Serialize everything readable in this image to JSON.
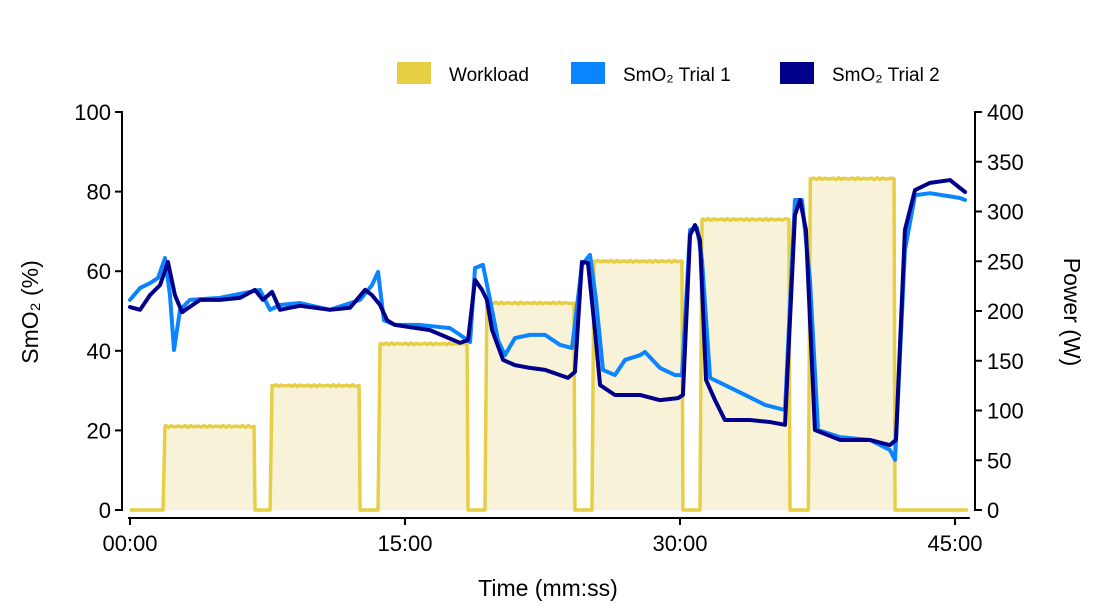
{
  "chart_data": {
    "type": "line",
    "xlabel": "Time (mm:ss)",
    "ylabel": "SmO₂ (%)",
    "y2label": "Power (W)",
    "xlim": [
      0,
      46
    ],
    "ylim": [
      0,
      100
    ],
    "y2lim": [
      0,
      400
    ],
    "x_ticks": [
      {
        "value": 0,
        "label": "00:00"
      },
      {
        "value": 15,
        "label": "15:00"
      },
      {
        "value": 30,
        "label": "30:00"
      },
      {
        "value": 45,
        "label": "45:00"
      }
    ],
    "y_ticks": [
      0,
      20,
      40,
      60,
      80,
      100
    ],
    "y2_ticks": [
      0,
      50,
      100,
      150,
      200,
      250,
      300,
      350,
      400
    ],
    "grid": false,
    "legend_position": "top-right",
    "legend": [
      {
        "label": "Workload",
        "color": "#e6cf45"
      },
      {
        "label": "SmO₂ Trial 1",
        "color": "#0a84ff"
      },
      {
        "label": "SmO₂ Trial 2",
        "color": "#00008b"
      }
    ],
    "workload": {
      "name": "Workload",
      "color": "#e6cf45",
      "fill": "#f8f2d8",
      "x_end": 45.7,
      "stages": [
        {
          "start": 1.8,
          "end": 6.82,
          "power": 84
        },
        {
          "start": 7.64,
          "end": 12.55,
          "power": 125
        },
        {
          "start": 13.53,
          "end": 18.44,
          "power": 167
        },
        {
          "start": 19.36,
          "end": 24.27,
          "power": 208
        },
        {
          "start": 25.2,
          "end": 30.16,
          "power": 250
        },
        {
          "start": 31.09,
          "end": 36.0,
          "power": 292
        },
        {
          "start": 37.0,
          "end": 41.73,
          "power": 333
        }
      ]
    },
    "series": [
      {
        "name": "SmO₂ Trial 1",
        "color": "#0a84ff",
        "x": [
          0,
          0.55,
          1.09,
          1.53,
          1.91,
          2.18,
          2.4,
          2.73,
          3.27,
          4.91,
          7.09,
          7.64,
          8.18,
          9.27,
          10.91,
          12.55,
          13.2,
          13.53,
          13.85,
          14.45,
          15.82,
          17.45,
          18.0,
          18.55,
          18.82,
          19.25,
          19.64,
          20.07,
          20.45,
          21.0,
          21.82,
          22.64,
          23.45,
          24.11,
          24.65,
          25.09,
          25.42,
          25.8,
          26.45,
          27.0,
          27.82,
          28.09,
          28.91,
          29.73,
          30.11,
          30.55,
          30.93,
          31.2,
          31.64,
          32.45,
          33.55,
          34.64,
          35.73,
          36.27,
          36.65,
          37.09,
          37.53,
          38.73,
          40.36,
          41.45,
          41.73,
          42.27,
          42.82,
          43.64,
          45.27,
          45.55
        ],
        "y": [
          52.8,
          55.8,
          57.0,
          58.3,
          63.3,
          54.0,
          40.2,
          50.3,
          52.8,
          53.3,
          55.3,
          50.3,
          51.5,
          52.0,
          50.3,
          52.8,
          56.5,
          59.8,
          47.7,
          46.5,
          46.5,
          45.7,
          44.0,
          42.2,
          60.8,
          61.6,
          52.8,
          42.7,
          38.9,
          43.2,
          44.0,
          44.0,
          41.5,
          40.7,
          61.6,
          64.1,
          52.8,
          35.2,
          33.9,
          37.7,
          38.9,
          39.7,
          35.7,
          33.9,
          33.9,
          70.4,
          70.9,
          62.8,
          33.2,
          31.4,
          28.9,
          26.4,
          25.1,
          77.9,
          77.9,
          57.8,
          20.1,
          18.3,
          17.6,
          15.1,
          12.6,
          65.3,
          79.1,
          79.6,
          78.4,
          77.9
        ]
      },
      {
        "name": "SmO₂ Trial 2",
        "color": "#00008b",
        "x": [
          0,
          0.55,
          1.09,
          1.64,
          2.07,
          2.45,
          2.84,
          3.82,
          4.91,
          6.0,
          6.82,
          7.25,
          7.75,
          8.18,
          9.27,
          10.91,
          12.0,
          12.82,
          13.2,
          13.64,
          14.02,
          14.45,
          16.36,
          18.0,
          18.44,
          18.82,
          19.2,
          19.47,
          19.75,
          20.35,
          21.0,
          21.82,
          22.64,
          23.89,
          24.27,
          24.65,
          24.98,
          25.36,
          25.64,
          26.45,
          27.82,
          28.91,
          29.89,
          30.16,
          30.55,
          30.82,
          31.09,
          31.42,
          31.91,
          32.45,
          33.82,
          34.91,
          35.73,
          36.27,
          36.55,
          36.87,
          37.36,
          38.73,
          40.36,
          41.45,
          41.78,
          42.27,
          42.82,
          43.64,
          44.73,
          45.55
        ],
        "y": [
          51.0,
          50.3,
          54.0,
          56.5,
          62.3,
          54.0,
          49.7,
          52.8,
          52.8,
          53.3,
          55.3,
          52.8,
          54.8,
          50.3,
          51.3,
          50.3,
          50.8,
          55.3,
          54.0,
          51.5,
          47.7,
          46.5,
          45.2,
          42.0,
          42.7,
          57.8,
          55.3,
          52.8,
          45.2,
          37.7,
          36.4,
          35.7,
          35.2,
          33.2,
          34.7,
          62.3,
          62.1,
          45.2,
          31.4,
          28.9,
          28.9,
          27.6,
          28.1,
          28.9,
          69.1,
          71.6,
          67.8,
          32.7,
          27.6,
          22.6,
          22.6,
          22.1,
          21.4,
          74.1,
          77.9,
          70.4,
          20.1,
          17.6,
          17.6,
          16.3,
          17.6,
          70.4,
          80.4,
          82.2,
          82.9,
          79.9
        ]
      }
    ]
  }
}
